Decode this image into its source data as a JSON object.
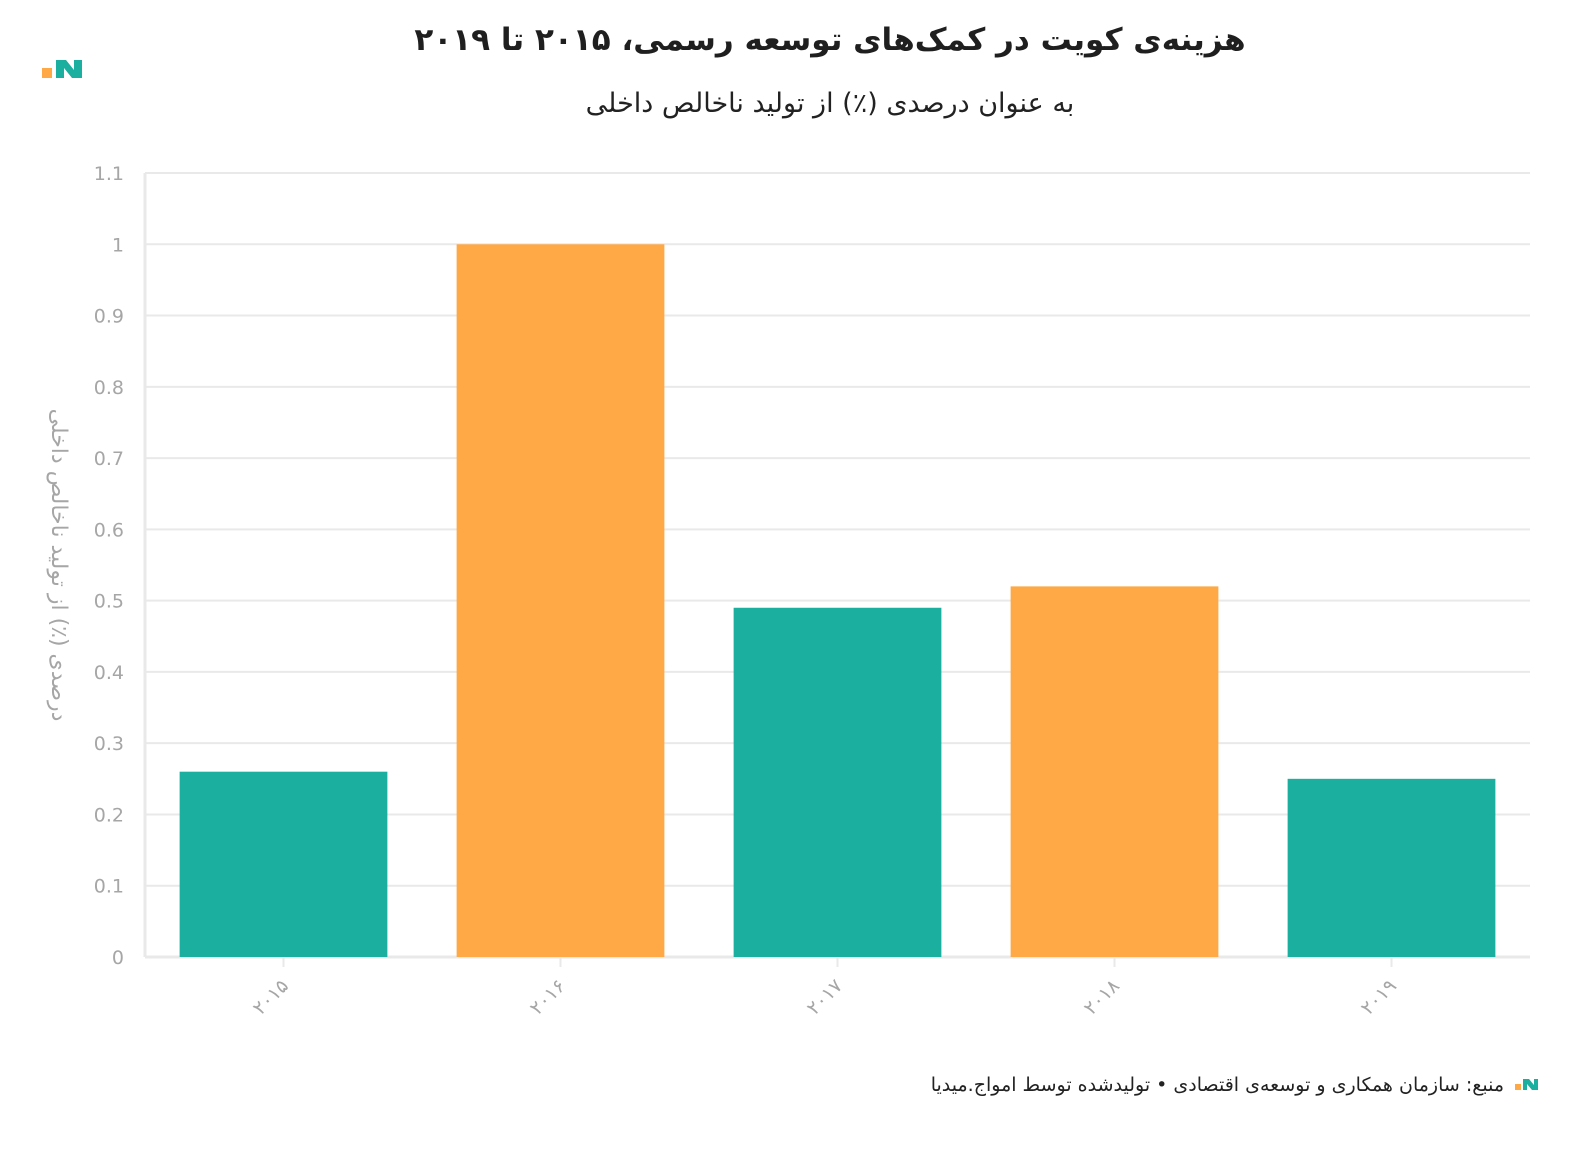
{
  "title": "هزینه‌ی کویت در کمک‌های توسعه رسمی، ۲۰۱۵ تا ۲۰۱۹",
  "subtitle": "به عنوان درصدی (٪) از تولید ناخالص داخلی",
  "footer": "منبع: سازمان همکاری و توسعه‌ی اقتصادی • تولیدشده توسط امواج.میدیا",
  "colors": {
    "teal": "#1aaf9e",
    "orange": "#fea946",
    "grid": "#e9e9e9",
    "tick_text": "#a6a6a6",
    "brand_dark": "#179b8c"
  },
  "chart_data": {
    "type": "bar",
    "categories": [
      "۲۰۱۵",
      "۲۰۱۶",
      "۲۰۱۷",
      "۲۰۱۸",
      "۲۰۱۹"
    ],
    "values": [
      0.26,
      1.0,
      0.49,
      0.52,
      0.25
    ],
    "bar_colors": [
      "#1aaf9e",
      "#fea946",
      "#1aaf9e",
      "#fea946",
      "#1aaf9e"
    ],
    "ylabel": "درصدی (٪) از تولید ناخالص داخلی",
    "xlabel": "",
    "ylim": [
      0,
      1.1
    ],
    "yticks": [
      "0",
      "0.1",
      "0.2",
      "0.3",
      "0.4",
      "0.5",
      "0.6",
      "0.7",
      "0.8",
      "0.9",
      "1",
      "1.1"
    ],
    "ytick_values": [
      0,
      0.1,
      0.2,
      0.3,
      0.4,
      0.5,
      0.6,
      0.7,
      0.8,
      0.9,
      1.0,
      1.1
    ],
    "grid": true,
    "legend": "none"
  }
}
